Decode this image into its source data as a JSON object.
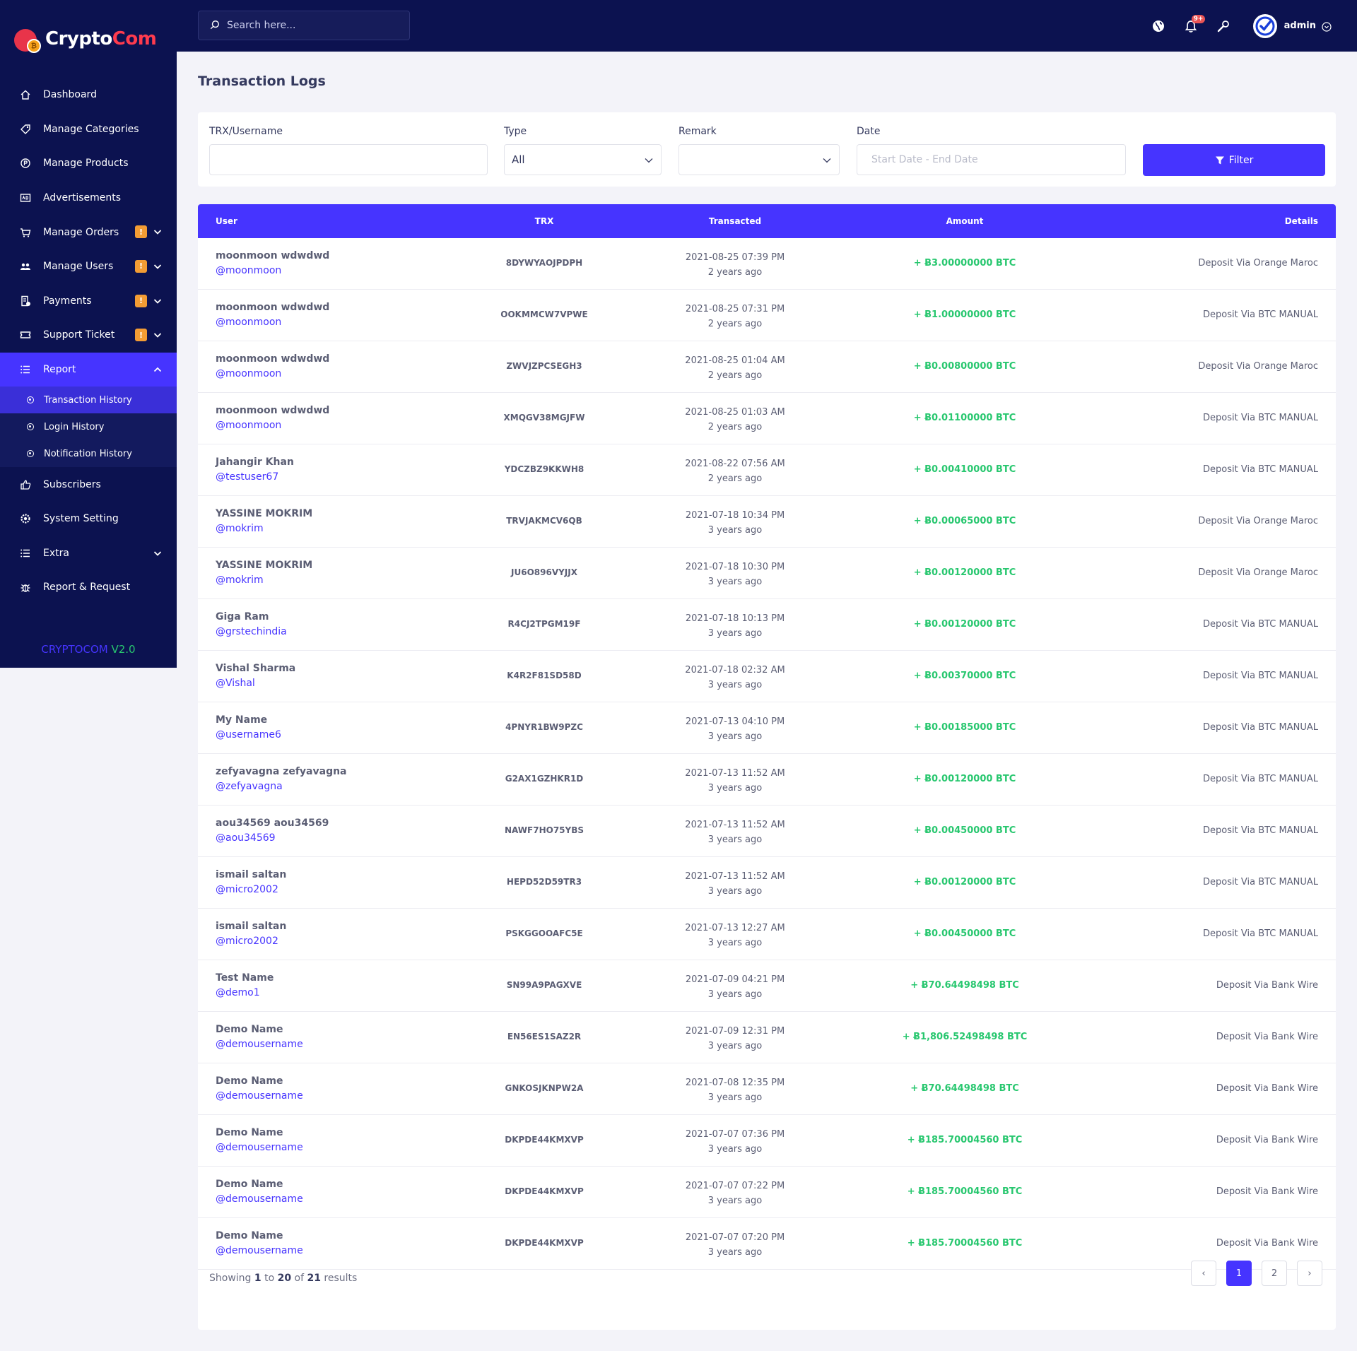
{
  "brand": {
    "part1": "Crypto",
    "part2": "Com",
    "coin_glyph": "₿"
  },
  "sidebar": {
    "items": [
      {
        "label": "Dashboard",
        "icon": "home-icon"
      },
      {
        "label": "Manage Categories",
        "icon": "tag-icon"
      },
      {
        "label": "Manage Products",
        "icon": "product-icon"
      },
      {
        "label": "Advertisements",
        "icon": "ad-icon"
      },
      {
        "label": "Manage Orders",
        "icon": "cart-icon",
        "badge": "!"
      },
      {
        "label": "Manage Users",
        "icon": "users-icon",
        "badge": "!"
      },
      {
        "label": "Payments",
        "icon": "payments-icon",
        "badge": "!"
      },
      {
        "label": "Support Ticket",
        "icon": "ticket-icon",
        "badge": "!"
      },
      {
        "label": "Report",
        "icon": "list-icon"
      }
    ],
    "report_sub": [
      {
        "label": "Transaction History"
      },
      {
        "label": "Login History"
      },
      {
        "label": "Notification History"
      }
    ],
    "items2": [
      {
        "label": "Subscribers",
        "icon": "thumbs-up-icon"
      },
      {
        "label": "System Setting",
        "icon": "gear-icon"
      },
      {
        "label": "Extra",
        "icon": "list-icon"
      },
      {
        "label": "Report & Request",
        "icon": "bug-icon"
      }
    ],
    "version_name": "CRYPTOCOM",
    "version_num": " V2.0"
  },
  "topbar": {
    "search_placeholder": "Search here...",
    "notif_count": "9+",
    "admin_name": "admin"
  },
  "page": {
    "title": "Transaction Logs",
    "filters": {
      "trx_label": "TRX/Username",
      "trx_value": "",
      "type_label": "Type",
      "type_value": "All",
      "remark_label": "Remark",
      "remark_value": "",
      "date_label": "Date",
      "date_placeholder": "Start Date - End Date",
      "filter_button": "Filter"
    },
    "table": {
      "headers": {
        "user": "User",
        "trx": "TRX",
        "transacted": "Transacted",
        "amount": "Amount",
        "details": "Details"
      },
      "rows": [
        {
          "name": "moonmoon wdwdwd",
          "username": "@moonmoon",
          "trx": "8DYWYAOJPDPH",
          "date": "2021-08-25 07:39 PM",
          "ago": "2 years ago",
          "amount": "+ Ƀ3.00000000 BTC",
          "details": "Deposit Via Orange Maroc"
        },
        {
          "name": "moonmoon wdwdwd",
          "username": "@moonmoon",
          "trx": "OOKMMCW7VPWE",
          "date": "2021-08-25 07:31 PM",
          "ago": "2 years ago",
          "amount": "+ Ƀ1.00000000 BTC",
          "details": "Deposit Via BTC MANUAL"
        },
        {
          "name": "moonmoon wdwdwd",
          "username": "@moonmoon",
          "trx": "ZWVJZPCSEGH3",
          "date": "2021-08-25 01:04 AM",
          "ago": "2 years ago",
          "amount": "+ Ƀ0.00800000 BTC",
          "details": "Deposit Via Orange Maroc"
        },
        {
          "name": "moonmoon wdwdwd",
          "username": "@moonmoon",
          "trx": "XMQGV38MGJFW",
          "date": "2021-08-25 01:03 AM",
          "ago": "2 years ago",
          "amount": "+ Ƀ0.01100000 BTC",
          "details": "Deposit Via BTC MANUAL"
        },
        {
          "name": "Jahangir Khan",
          "username": "@testuser67",
          "trx": "YDCZBZ9KKWH8",
          "date": "2021-08-22 07:56 AM",
          "ago": "2 years ago",
          "amount": "+ Ƀ0.00410000 BTC",
          "details": "Deposit Via BTC MANUAL"
        },
        {
          "name": "YASSINE MOKRIM",
          "username": "@mokrim",
          "trx": "TRVJAKMCV6QB",
          "date": "2021-07-18 10:34 PM",
          "ago": "3 years ago",
          "amount": "+ Ƀ0.00065000 BTC",
          "details": "Deposit Via Orange Maroc"
        },
        {
          "name": "YASSINE MOKRIM",
          "username": "@mokrim",
          "trx": "JU6O896VYJJX",
          "date": "2021-07-18 10:30 PM",
          "ago": "3 years ago",
          "amount": "+ Ƀ0.00120000 BTC",
          "details": "Deposit Via Orange Maroc"
        },
        {
          "name": "Giga Ram",
          "username": "@grstechindia",
          "trx": "R4CJ2TPGM19F",
          "date": "2021-07-18 10:13 PM",
          "ago": "3 years ago",
          "amount": "+ Ƀ0.00120000 BTC",
          "details": "Deposit Via BTC MANUAL"
        },
        {
          "name": "Vishal Sharma",
          "username": "@Vishal",
          "trx": "K4R2F81SD58D",
          "date": "2021-07-18 02:32 AM",
          "ago": "3 years ago",
          "amount": "+ Ƀ0.00370000 BTC",
          "details": "Deposit Via BTC MANUAL"
        },
        {
          "name": "My Name",
          "username": "@username6",
          "trx": "4PNYR1BW9PZC",
          "date": "2021-07-13 04:10 PM",
          "ago": "3 years ago",
          "amount": "+ Ƀ0.00185000 BTC",
          "details": "Deposit Via BTC MANUAL"
        },
        {
          "name": "zefyavagna zefyavagna",
          "username": "@zefyavagna",
          "trx": "G2AX1GZHKR1D",
          "date": "2021-07-13 11:52 AM",
          "ago": "3 years ago",
          "amount": "+ Ƀ0.00120000 BTC",
          "details": "Deposit Via BTC MANUAL"
        },
        {
          "name": "aou34569 aou34569",
          "username": "@aou34569",
          "trx": "NAWF7HO75YBS",
          "date": "2021-07-13 11:52 AM",
          "ago": "3 years ago",
          "amount": "+ Ƀ0.00450000 BTC",
          "details": "Deposit Via BTC MANUAL"
        },
        {
          "name": "ismail saltan",
          "username": "@micro2002",
          "trx": "HEPD52D59TR3",
          "date": "2021-07-13 11:52 AM",
          "ago": "3 years ago",
          "amount": "+ Ƀ0.00120000 BTC",
          "details": "Deposit Via BTC MANUAL"
        },
        {
          "name": "ismail saltan",
          "username": "@micro2002",
          "trx": "PSKGGOOAFC5E",
          "date": "2021-07-13 12:27 AM",
          "ago": "3 years ago",
          "amount": "+ Ƀ0.00450000 BTC",
          "details": "Deposit Via BTC MANUAL"
        },
        {
          "name": "Test Name",
          "username": "@demo1",
          "trx": "SN99A9PAGXVE",
          "date": "2021-07-09 04:21 PM",
          "ago": "3 years ago",
          "amount": "+ Ƀ70.64498498 BTC",
          "details": "Deposit Via Bank Wire"
        },
        {
          "name": "Demo Name",
          "username": "@demousername",
          "trx": "EN56ES1SAZ2R",
          "date": "2021-07-09 12:31 PM",
          "ago": "3 years ago",
          "amount": "+ Ƀ1,806.52498498 BTC",
          "details": "Deposit Via Bank Wire"
        },
        {
          "name": "Demo Name",
          "username": "@demousername",
          "trx": "GNKOSJKNPW2A",
          "date": "2021-07-08 12:35 PM",
          "ago": "3 years ago",
          "amount": "+ Ƀ70.64498498 BTC",
          "details": "Deposit Via Bank Wire"
        },
        {
          "name": "Demo Name",
          "username": "@demousername",
          "trx": "DKPDE44KMXVP",
          "date": "2021-07-07 07:36 PM",
          "ago": "3 years ago",
          "amount": "+ Ƀ185.70004560 BTC",
          "details": "Deposit Via Bank Wire"
        },
        {
          "name": "Demo Name",
          "username": "@demousername",
          "trx": "DKPDE44KMXVP",
          "date": "2021-07-07 07:22 PM",
          "ago": "3 years ago",
          "amount": "+ Ƀ185.70004560 BTC",
          "details": "Deposit Via Bank Wire"
        },
        {
          "name": "Demo Name",
          "username": "@demousername",
          "trx": "DKPDE44KMXVP",
          "date": "2021-07-07 07:20 PM",
          "ago": "3 years ago",
          "amount": "+ Ƀ185.70004560 BTC",
          "details": "Deposit Via Bank Wire"
        }
      ]
    },
    "pagination": {
      "showing_prefix": "Showing ",
      "from": "1",
      "to_word": " to ",
      "to": "20",
      "of_word": " of ",
      "total": "21",
      "results_word": " results",
      "prev": "‹",
      "pages": [
        "1",
        "2"
      ],
      "next": "›"
    }
  }
}
